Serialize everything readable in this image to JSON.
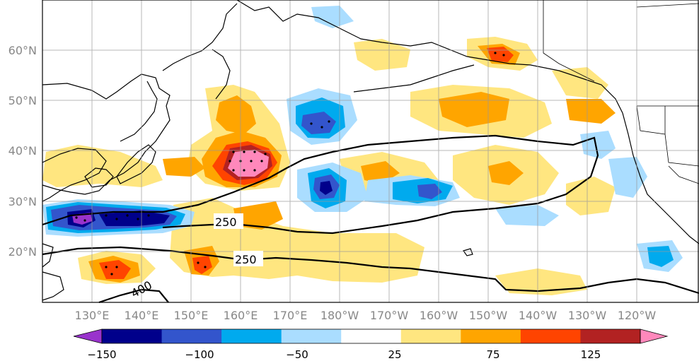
{
  "map": {
    "lon_ticks": [
      "130°E",
      "140°E",
      "150°E",
      "160°E",
      "170°E",
      "180°W",
      "170°W",
      "160°W",
      "150°W",
      "140°W",
      "130°W",
      "120°W"
    ],
    "lat_ticks": [
      "60°N",
      "50°N",
      "40°N",
      "30°N",
      "20°N"
    ],
    "contour_labels": [
      "250",
      "250",
      "400"
    ]
  },
  "colorbar": {
    "tick_labels": [
      "−150",
      "−100",
      "−50",
      "25",
      "75",
      "125"
    ],
    "colors": [
      "#9933cc",
      "#00008b",
      "#3355cc",
      "#00aaee",
      "#aaddff",
      "#ffffff",
      "#ffe680",
      "#ffa500",
      "#ff4400",
      "#b22222",
      "#ff88bb"
    ]
  },
  "anomalies": {
    "positive_colors": [
      "#ffe680",
      "#ffa500",
      "#ff4400",
      "#b22222",
      "#ff88bb"
    ],
    "negative_colors": [
      "#aaddff",
      "#00aaee",
      "#3355cc",
      "#00008b",
      "#9933cc"
    ]
  }
}
